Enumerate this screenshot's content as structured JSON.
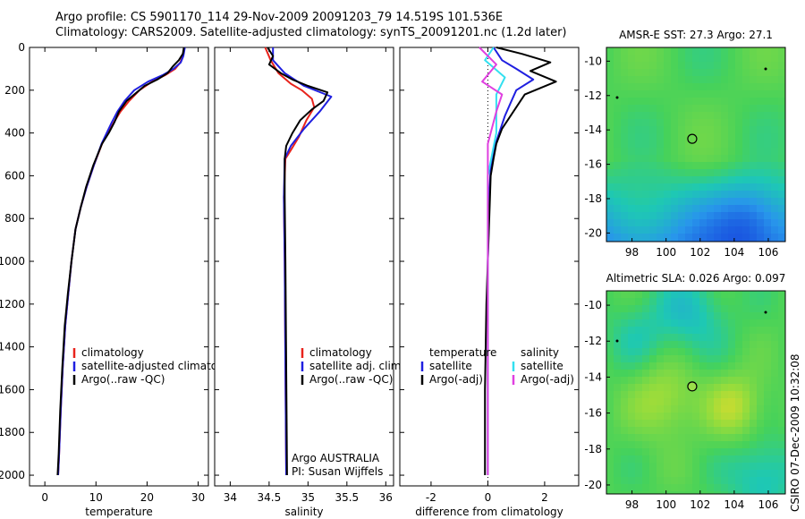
{
  "title": {
    "line1": "Argo profile: CS 5901170_114 29-Nov-2009 20091203_79 14.519S 101.536E",
    "line2": "Climatology: CARS2009. Satellite-adjusted climatology: synTS_20091201.nc (1.2d later)"
  },
  "side_stamp": "CSIRO 07-Dec-2009 10:32:08",
  "colors": {
    "climatology": "#e8231c",
    "satellite": "#1f1fe0",
    "argo": "#000000",
    "satellite_salinity": "#33e0f0",
    "argo_adj_salinity": "#e040e0"
  },
  "chart_data": [
    {
      "type": "line",
      "panel": "temperature",
      "xlabel": "temperature",
      "ylabel": "",
      "xlim": [
        -3,
        32
      ],
      "ylim": [
        2050,
        0
      ],
      "xticks": [
        0,
        10,
        20,
        30
      ],
      "yticks": [
        0,
        200,
        400,
        600,
        800,
        1000,
        1200,
        1400,
        1600,
        1800,
        2000
      ],
      "legend": [
        "climatology",
        "satellite-adjusted climatology",
        "Argo(..raw -QC)"
      ],
      "legend_position": "lower-right",
      "series": [
        {
          "name": "climatology",
          "color": "#e8231c",
          "x": [
            27.3,
            27.0,
            26.5,
            25.5,
            23.5,
            21.0,
            18.5,
            16.5,
            14.8,
            13.5,
            12.3,
            11.2,
            9.6,
            8.2,
            7.0,
            6.0,
            5.2,
            4.6,
            4.0,
            3.5,
            3.1,
            2.8,
            2.6
          ],
          "y": [
            0,
            40,
            70,
            100,
            130,
            160,
            200,
            250,
            300,
            350,
            400,
            450,
            550,
            650,
            750,
            850,
            1000,
            1150,
            1300,
            1500,
            1700,
            1900,
            2000
          ]
        },
        {
          "name": "satellite-adjusted climatology",
          "color": "#1f1fe0",
          "x": [
            27.4,
            27.1,
            26.6,
            25.2,
            23.0,
            20.2,
            17.5,
            15.6,
            14.2,
            13.1,
            12.1,
            11.1,
            9.6,
            8.2,
            7.0,
            6.0,
            5.2,
            4.6,
            4.0,
            3.5,
            3.1,
            2.8,
            2.6
          ],
          "y": [
            0,
            40,
            70,
            100,
            130,
            160,
            200,
            250,
            300,
            350,
            400,
            450,
            550,
            650,
            750,
            850,
            1000,
            1150,
            1300,
            1500,
            1700,
            1900,
            2000
          ]
        },
        {
          "name": "Argo(..raw -QC)",
          "color": "#000000",
          "x": [
            27.2,
            27.0,
            26.2,
            25.0,
            24.0,
            22.0,
            19.5,
            18.0,
            16.0,
            14.5,
            13.6,
            12.5,
            11.2,
            9.5,
            8.1,
            7.0,
            6.0,
            5.2,
            4.5,
            3.9,
            3.4,
            3.0,
            2.7,
            2.5
          ],
          "y": [
            0,
            30,
            60,
            90,
            120,
            150,
            180,
            210,
            250,
            300,
            350,
            400,
            450,
            550,
            650,
            750,
            850,
            1000,
            1150,
            1300,
            1500,
            1700,
            1900,
            2000
          ]
        }
      ]
    },
    {
      "type": "line",
      "panel": "salinity",
      "xlabel": "salinity",
      "ylabel": "",
      "xlim": [
        33.8,
        36.1
      ],
      "ylim": [
        2050,
        0
      ],
      "xticks": [
        34,
        34.5,
        35,
        35.5,
        36
      ],
      "yticks": [
        0,
        200,
        400,
        600,
        800,
        1000,
        1200,
        1400,
        1600,
        1800,
        2000
      ],
      "legend": [
        "climatology",
        "satellite adj. clim.",
        "Argo(..raw -QC)"
      ],
      "legend_position": "lower-right",
      "annotations": [
        "Argo AUSTRALIA",
        "PI: Susan Wijffels"
      ],
      "series": [
        {
          "name": "climatology",
          "color": "#e8231c",
          "x": [
            34.45,
            34.52,
            34.62,
            34.78,
            34.92,
            35.05,
            35.08,
            34.98,
            34.88,
            34.78,
            34.71,
            34.69,
            34.7,
            34.71,
            34.72
          ],
          "y": [
            0,
            60,
            120,
            170,
            200,
            240,
            280,
            340,
            420,
            480,
            520,
            700,
            1000,
            1500,
            2000
          ]
        },
        {
          "name": "satellite adj. clim.",
          "color": "#1f1fe0",
          "x": [
            34.55,
            34.55,
            34.7,
            34.95,
            35.3,
            35.15,
            34.95,
            34.78,
            34.7,
            34.69,
            34.7,
            34.71,
            34.72
          ],
          "y": [
            0,
            60,
            120,
            180,
            230,
            300,
            380,
            460,
            520,
            700,
            1000,
            1500,
            2000
          ]
        },
        {
          "name": "Argo(..raw -QC)",
          "color": "#000000",
          "x": [
            34.48,
            34.55,
            34.5,
            34.65,
            34.8,
            35.0,
            35.25,
            35.2,
            35.05,
            34.9,
            34.8,
            34.72,
            34.7,
            34.7,
            34.71,
            34.72,
            34.73
          ],
          "y": [
            0,
            40,
            80,
            120,
            150,
            180,
            210,
            250,
            290,
            340,
            400,
            460,
            520,
            700,
            1000,
            1500,
            2000
          ]
        }
      ]
    },
    {
      "type": "line",
      "panel": "difference",
      "xlabel": "difference from climatology",
      "ylabel": "",
      "xlim": [
        -3.1,
        3.2
      ],
      "ylim": [
        2050,
        0
      ],
      "xticks": [
        -2,
        0,
        2
      ],
      "yticks": [
        0,
        200,
        400,
        600,
        800,
        1000,
        1200,
        1400,
        1600,
        1800,
        2000
      ],
      "legend": [
        "temperature",
        "satellite",
        "Argo(-adj)",
        "salinity",
        "satellite",
        "Argo(-adj)"
      ],
      "legend_position": "lower-center",
      "series": [
        {
          "name": "temperature satellite",
          "color": "#1f1fe0",
          "x": [
            0.2,
            0.5,
            1.0,
            1.6,
            1.0,
            0.8,
            0.6,
            0.4,
            0.2,
            0.1,
            0.05,
            0.0,
            0.0,
            0.0
          ],
          "y": [
            0,
            60,
            100,
            150,
            200,
            260,
            320,
            400,
            480,
            560,
            700,
            1000,
            1500,
            2000
          ]
        },
        {
          "name": "temperature Argo(-adj)",
          "color": "#000000",
          "x": [
            0.3,
            1.2,
            2.2,
            1.5,
            2.4,
            1.3,
            0.9,
            0.5,
            0.3,
            0.2,
            0.1,
            0.05,
            -0.05,
            -0.1,
            -0.1
          ],
          "y": [
            0,
            30,
            70,
            110,
            160,
            220,
            300,
            380,
            450,
            520,
            600,
            800,
            1200,
            1600,
            2000
          ]
        },
        {
          "name": "salinity satellite",
          "color": "#33e0f0",
          "x": [
            0.2,
            -0.1,
            0.6,
            0.3,
            0.3,
            0.0,
            0.0,
            0.0
          ],
          "y": [
            0,
            60,
            140,
            220,
            400,
            600,
            1000,
            2000
          ]
        },
        {
          "name": "salinity Argo(-adj)",
          "color": "#e040e0",
          "x": [
            -0.3,
            0.3,
            -0.2,
            0.5,
            0.3,
            0.0,
            0.0,
            0.0
          ],
          "y": [
            0,
            80,
            160,
            220,
            300,
            450,
            800,
            2000
          ]
        }
      ]
    },
    {
      "type": "heatmap",
      "panel": "map-sst",
      "title": "AMSR-E SST: 27.3 Argo: 27.1",
      "xticks": [
        98,
        100,
        102,
        104,
        106
      ],
      "yticks": [
        -10,
        -12,
        -14,
        -16,
        -18,
        -20
      ],
      "xlim": [
        96.5,
        107
      ],
      "ylim": [
        -20.5,
        -9.2
      ],
      "marker": {
        "lon": 101.536,
        "lat": -14.519
      }
    },
    {
      "type": "heatmap",
      "panel": "map-sla",
      "title": "Altimetric SLA: 0.026 Argo: 0.097",
      "xticks": [
        98,
        100,
        102,
        104,
        106
      ],
      "yticks": [
        -10,
        -12,
        -14,
        -16,
        -18,
        -20
      ],
      "xlim": [
        96.5,
        107
      ],
      "ylim": [
        -20.5,
        -9.2
      ],
      "marker": {
        "lon": 101.536,
        "lat": -14.519
      }
    }
  ]
}
